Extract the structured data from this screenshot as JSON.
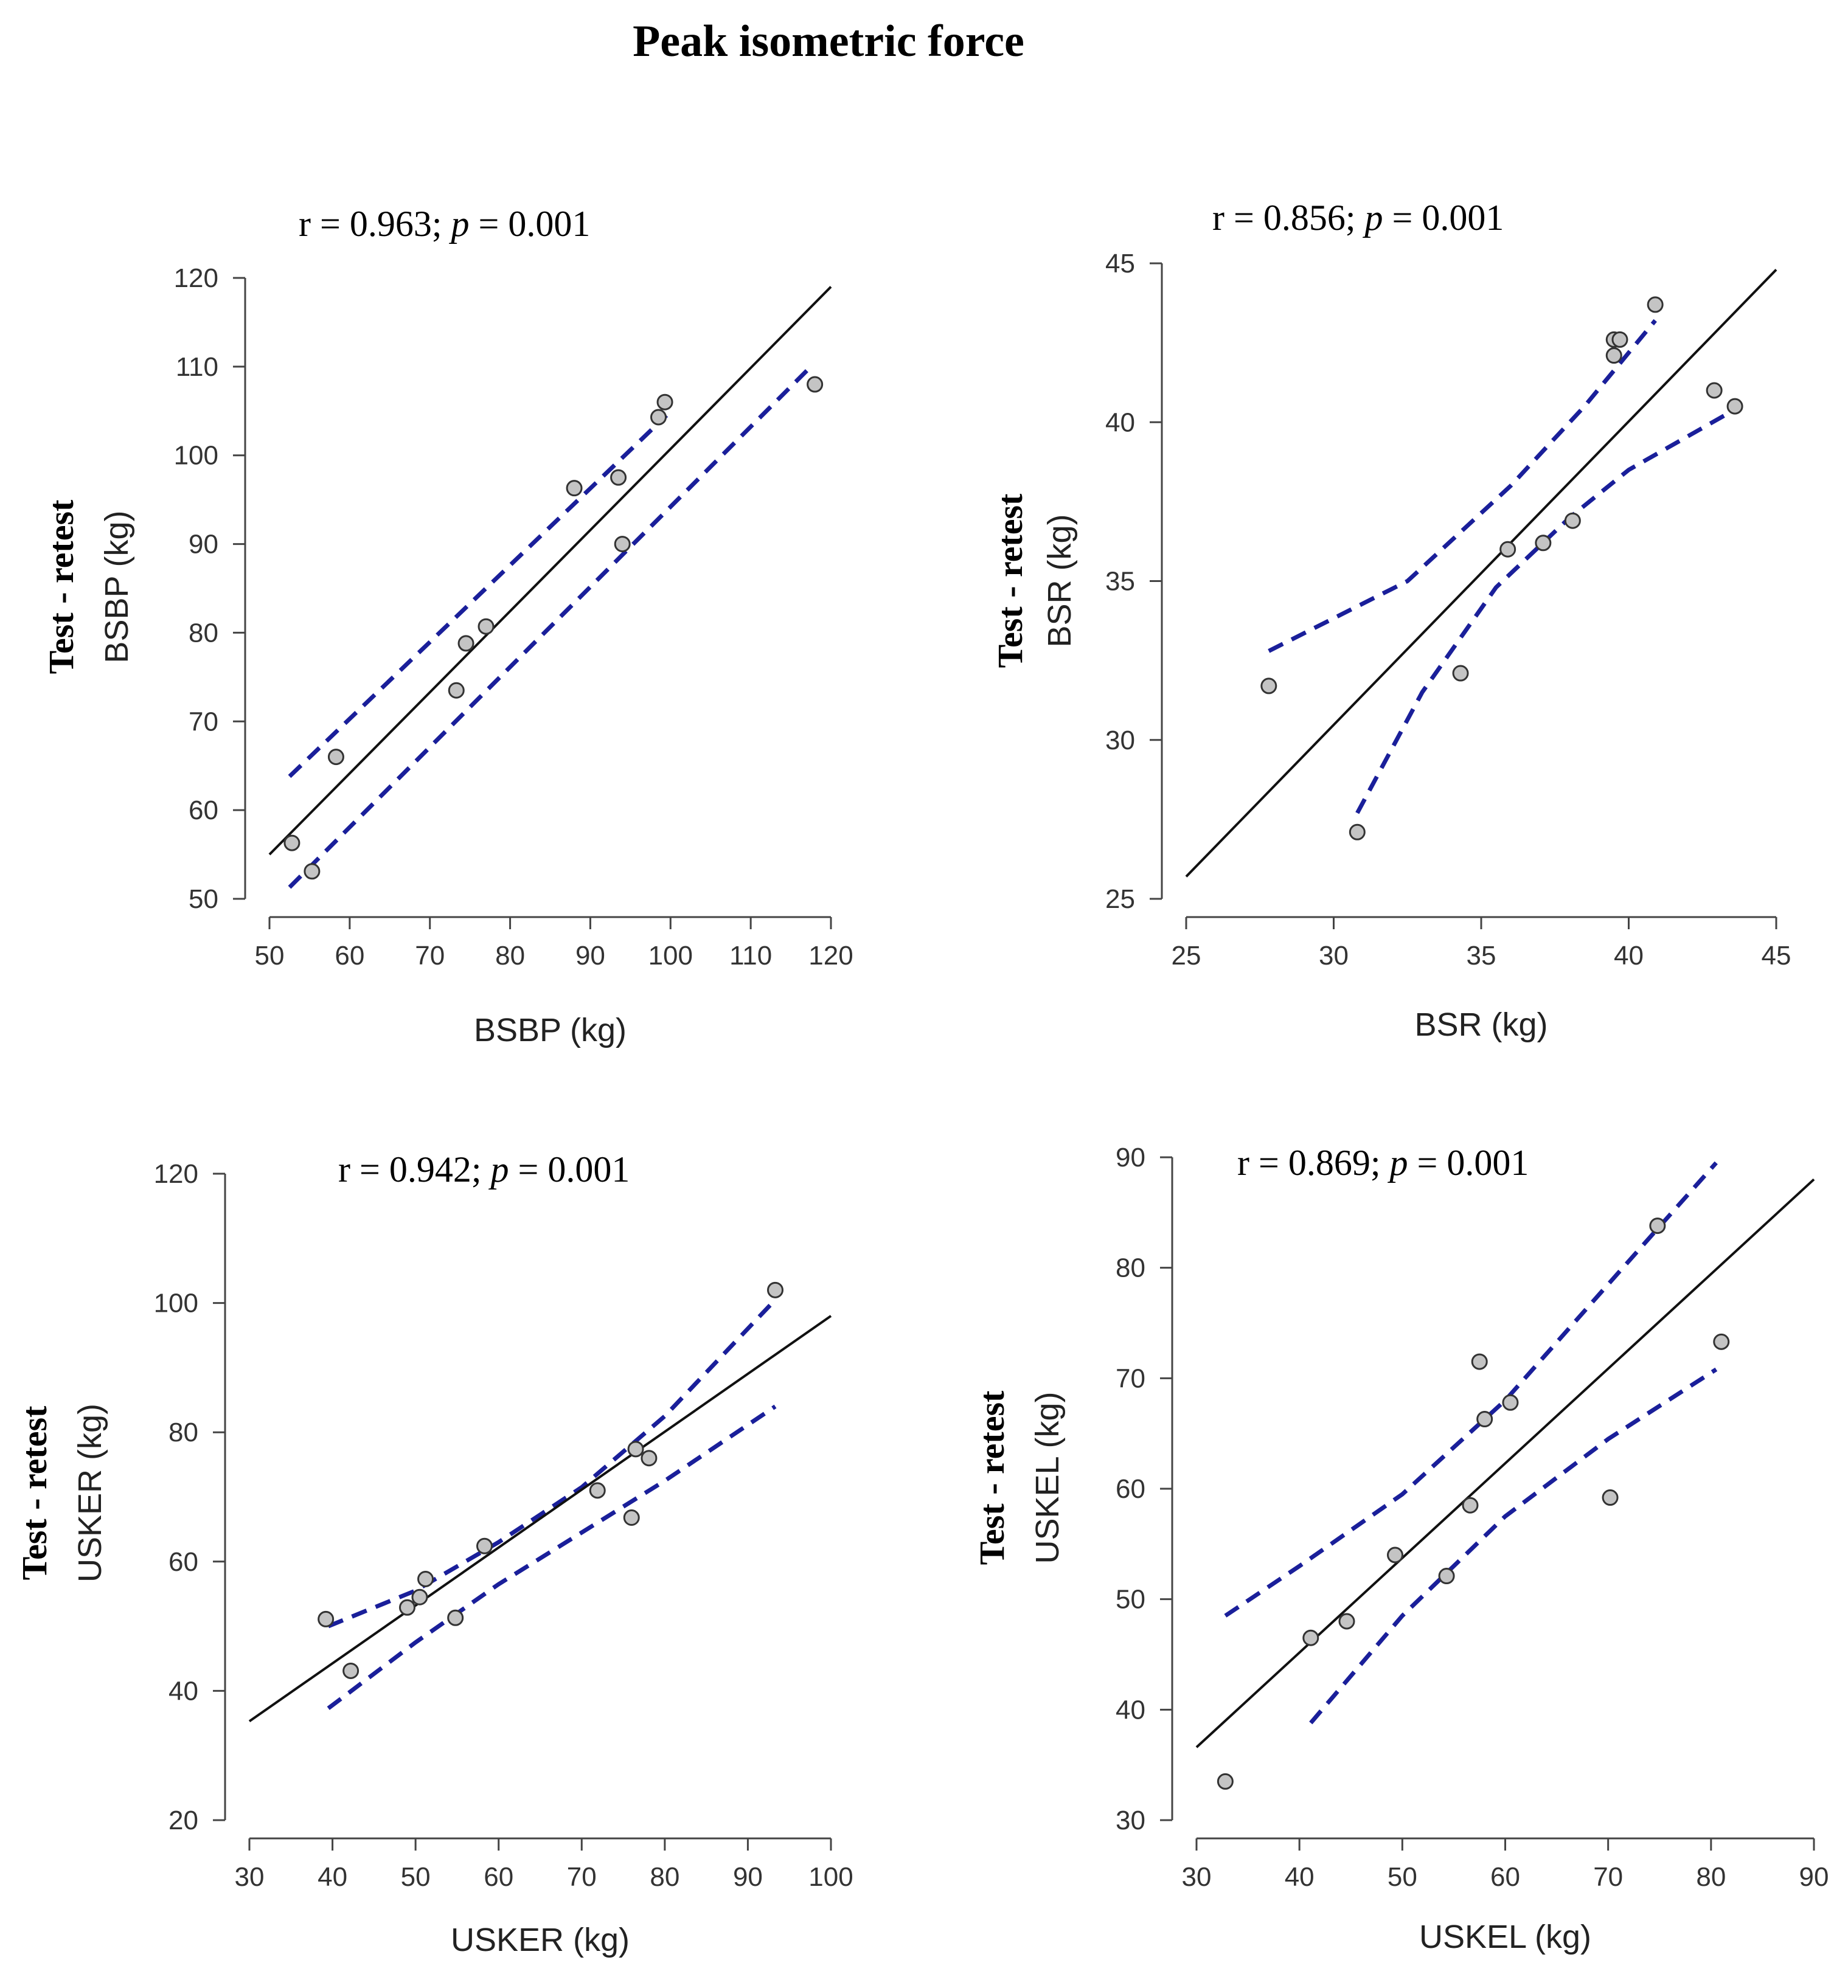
{
  "figure_title": "Peak isometric force",
  "chart_data": [
    {
      "type": "scatter",
      "id": "bsbp",
      "stat": {
        "r_prefix": "r = 0.963; ",
        "p_symbol": "p",
        "p_value": " = 0.001"
      },
      "xlabel": "BSBP  (kg)",
      "ylabel_top": "Test - retest",
      "ylabel_var": "BSBP  (kg)",
      "xlim": [
        50,
        120
      ],
      "ylim": [
        50,
        120
      ],
      "xticks": [
        50,
        60,
        70,
        80,
        90,
        100,
        110,
        120
      ],
      "yticks": [
        50,
        60,
        70,
        80,
        90,
        100,
        110,
        120
      ],
      "points": [
        [
          52.8,
          56.3
        ],
        [
          55.3,
          53.1
        ],
        [
          58.3,
          66.0
        ],
        [
          73.3,
          73.5
        ],
        [
          74.5,
          78.8
        ],
        [
          77.0,
          80.7
        ],
        [
          88.0,
          96.3
        ],
        [
          93.5,
          97.5
        ],
        [
          94.0,
          90.0
        ],
        [
          98.5,
          104.3
        ],
        [
          99.3,
          106.0
        ],
        [
          118.0,
          108.0
        ]
      ],
      "fit_line": [
        [
          50,
          55.0
        ],
        [
          120,
          119.0
        ]
      ],
      "ci_upper": [
        [
          52.5,
          63.8
        ],
        [
          99.5,
          104.5
        ]
      ],
      "ci_lower": [
        [
          52.5,
          51.3
        ],
        [
          117.5,
          110.0
        ]
      ]
    },
    {
      "type": "scatter",
      "id": "bsr",
      "stat": {
        "r_prefix": "r = 0.856; ",
        "p_symbol": "p",
        "p_value": " = 0.001"
      },
      "xlabel": "BSR (kg)",
      "ylabel_top": "Test - retest",
      "ylabel_var": "BSR (kg)",
      "xlim": [
        25,
        45
      ],
      "ylim": [
        25,
        45
      ],
      "xticks": [
        25,
        30,
        35,
        40,
        45
      ],
      "yticks": [
        25,
        30,
        35,
        40,
        45
      ],
      "points": [
        [
          27.8,
          31.7
        ],
        [
          30.8,
          27.1
        ],
        [
          34.3,
          32.1
        ],
        [
          35.9,
          36.0
        ],
        [
          37.1,
          36.2
        ],
        [
          38.1,
          36.9
        ],
        [
          39.5,
          42.1
        ],
        [
          39.5,
          42.6
        ],
        [
          39.7,
          42.6
        ],
        [
          40.9,
          43.7
        ],
        [
          42.9,
          41.0
        ],
        [
          43.6,
          40.5
        ]
      ],
      "fit_line": [
        [
          25,
          25.7
        ],
        [
          45,
          44.8
        ]
      ],
      "ci_upper": [
        [
          27.8,
          32.8
        ],
        [
          32.5,
          35.0
        ],
        [
          36.0,
          38.0
        ],
        [
          38.5,
          40.5
        ],
        [
          40.9,
          43.2
        ]
      ],
      "ci_lower": [
        [
          30.8,
          27.7
        ],
        [
          33.0,
          31.5
        ],
        [
          35.5,
          34.8
        ],
        [
          38.0,
          37.0
        ],
        [
          40.0,
          38.5
        ],
        [
          43.6,
          40.4
        ]
      ]
    },
    {
      "type": "scatter",
      "id": "usker",
      "stat": {
        "r_prefix": "r = 0.942; ",
        "p_symbol": "p",
        "p_value": " = 0.001"
      },
      "xlabel": "USKER (kg)",
      "ylabel_top": "Test - retest",
      "ylabel_var": "USKER (kg)",
      "xlim": [
        30,
        100
      ],
      "ylim": [
        20,
        120
      ],
      "xticks": [
        30,
        40,
        50,
        60,
        70,
        80,
        90,
        100
      ],
      "yticks": [
        20,
        40,
        60,
        80,
        100,
        120
      ],
      "points": [
        [
          39.2,
          51.1
        ],
        [
          42.2,
          43.1
        ],
        [
          49.0,
          52.9
        ],
        [
          50.5,
          54.5
        ],
        [
          51.2,
          57.3
        ],
        [
          54.8,
          51.3
        ],
        [
          58.3,
          62.4
        ],
        [
          71.9,
          71.0
        ],
        [
          76.0,
          66.8
        ],
        [
          76.5,
          77.4
        ],
        [
          78.1,
          76.0
        ],
        [
          93.3,
          102.0
        ]
      ],
      "fit_line": [
        [
          30,
          35.3
        ],
        [
          100,
          98.0
        ]
      ],
      "ci_upper": [
        [
          39.5,
          50.0
        ],
        [
          50.0,
          55.5
        ],
        [
          60.0,
          63.0
        ],
        [
          70.0,
          71.5
        ],
        [
          80.0,
          82.5
        ],
        [
          93.3,
          100.5
        ]
      ],
      "ci_lower": [
        [
          39.5,
          37.3
        ],
        [
          50.0,
          47.5
        ],
        [
          60.0,
          56.5
        ],
        [
          70.0,
          64.5
        ],
        [
          80.0,
          72.5
        ],
        [
          93.3,
          84.0
        ]
      ]
    },
    {
      "type": "scatter",
      "id": "uskel",
      "stat": {
        "r_prefix": "r = 0.869; ",
        "p_symbol": "p",
        "p_value": " = 0.001"
      },
      "xlabel": "USKEL (kg)",
      "ylabel_top": "Test - retest",
      "ylabel_var": "USKEL (kg)",
      "xlim": [
        30,
        90
      ],
      "ylim": [
        30,
        90
      ],
      "xticks": [
        30,
        40,
        50,
        60,
        70,
        80,
        90
      ],
      "yticks": [
        30,
        40,
        50,
        60,
        70,
        80,
        90
      ],
      "points": [
        [
          32.8,
          33.5
        ],
        [
          41.1,
          46.5
        ],
        [
          44.6,
          48.0
        ],
        [
          49.3,
          54.0
        ],
        [
          54.3,
          52.1
        ],
        [
          56.6,
          58.5
        ],
        [
          57.5,
          71.5
        ],
        [
          58.0,
          66.3
        ],
        [
          60.5,
          67.8
        ],
        [
          70.2,
          59.2
        ],
        [
          74.8,
          83.8
        ],
        [
          81.0,
          73.3
        ]
      ],
      "fit_line": [
        [
          30,
          36.6
        ],
        [
          90,
          88.0
        ]
      ],
      "ci_upper": [
        [
          32.8,
          48.5
        ],
        [
          40.0,
          53.0
        ],
        [
          50.0,
          59.5
        ],
        [
          60.0,
          68.0
        ],
        [
          70.0,
          78.5
        ],
        [
          80.5,
          89.5
        ]
      ],
      "ci_lower": [
        [
          41.1,
          38.8
        ],
        [
          50.0,
          48.5
        ],
        [
          60.0,
          57.5
        ],
        [
          70.0,
          64.5
        ],
        [
          80.5,
          70.8
        ]
      ]
    }
  ]
}
